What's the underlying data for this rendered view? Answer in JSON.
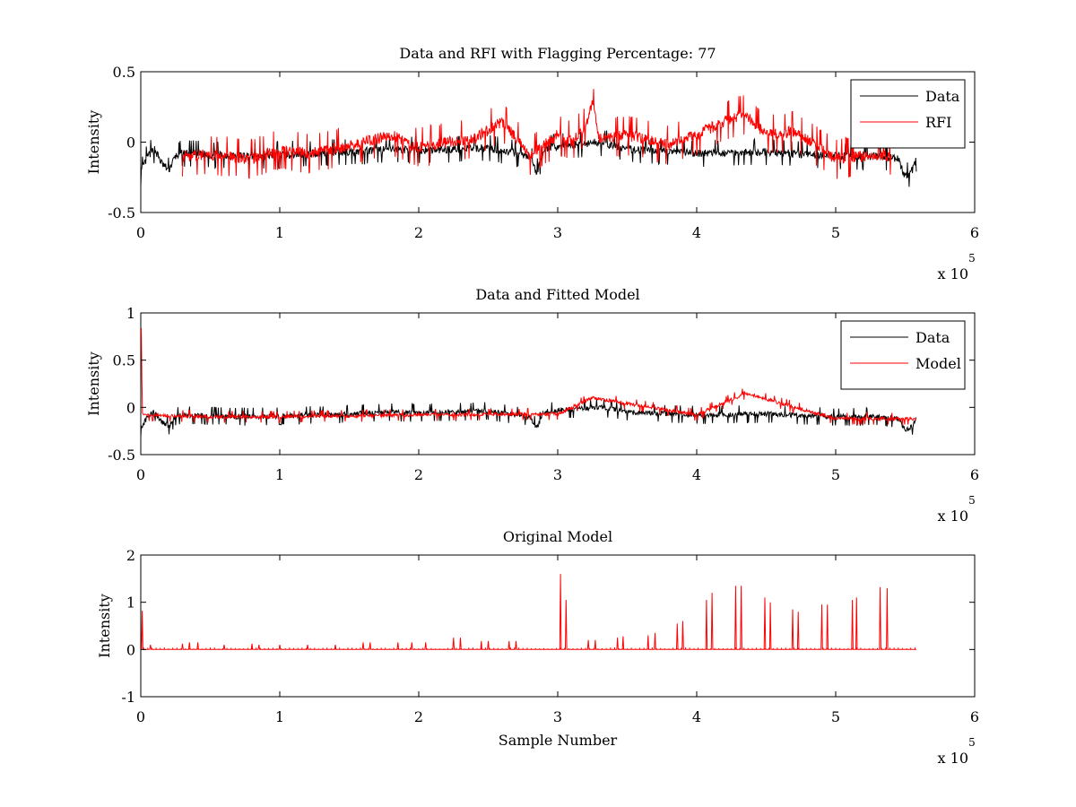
{
  "chart_data": [
    {
      "type": "line",
      "title": "Data and RFI with Flagging Percentage: 77",
      "xlabel": "",
      "ylabel": "Intensity",
      "xlim": [
        0,
        6
      ],
      "ylim": [
        -0.5,
        0.5
      ],
      "xticks": [
        "0",
        "1",
        "2",
        "3",
        "4",
        "5",
        "6"
      ],
      "yticks": [
        "-0.5",
        "0",
        "0.5"
      ],
      "x_exponent": "x 10",
      "x_exponent_power": "5",
      "legend_position": "top-right",
      "grid": false,
      "series": [
        {
          "name": "Data",
          "color": "#000000",
          "x": [
            0,
            0.05,
            0.1,
            0.15,
            0.2,
            0.25,
            0.3,
            0.5,
            0.8,
            1.0,
            1.5,
            1.8,
            2.0,
            2.5,
            2.8,
            2.85,
            2.9,
            3.0,
            3.3,
            3.5,
            4.0,
            4.5,
            5.0,
            5.3,
            5.45,
            5.5,
            5.55,
            5.58
          ],
          "y": [
            -0.22,
            -0.1,
            -0.05,
            -0.15,
            -0.2,
            -0.1,
            -0.08,
            -0.09,
            -0.1,
            -0.09,
            -0.07,
            -0.05,
            -0.06,
            -0.04,
            -0.1,
            -0.22,
            -0.05,
            -0.03,
            0.0,
            -0.05,
            -0.08,
            -0.07,
            -0.1,
            -0.1,
            -0.12,
            -0.25,
            -0.2,
            -0.12
          ]
        },
        {
          "name": "RFI",
          "color": "#ff0000",
          "x": [
            0.3,
            0.5,
            0.8,
            1.0,
            1.2,
            1.5,
            1.8,
            2.0,
            2.2,
            2.4,
            2.6,
            2.8,
            3.0,
            3.1,
            3.2,
            3.25,
            3.3,
            3.5,
            3.8,
            4.0,
            4.2,
            4.35,
            4.5,
            4.7,
            5.0,
            5.2,
            5.4
          ],
          "y": [
            -0.1,
            -0.09,
            -0.12,
            -0.05,
            -0.08,
            -0.03,
            0.05,
            -0.04,
            0.0,
            0.02,
            0.15,
            -0.1,
            0.05,
            0.0,
            0.12,
            0.28,
            0.02,
            0.05,
            -0.02,
            0.05,
            0.15,
            0.2,
            0.05,
            0.08,
            -0.12,
            -0.1,
            -0.1
          ]
        }
      ]
    },
    {
      "type": "line",
      "title": "Data and Fitted Model",
      "xlabel": "",
      "ylabel": "Intensity",
      "xlim": [
        0,
        6
      ],
      "ylim": [
        -0.5,
        1
      ],
      "xticks": [
        "0",
        "1",
        "2",
        "3",
        "4",
        "5",
        "6"
      ],
      "yticks": [
        "-0.5",
        "0",
        "0.5",
        "1"
      ],
      "x_exponent": "x 10",
      "x_exponent_power": "5",
      "legend_position": "top-right",
      "grid": false,
      "series": [
        {
          "name": "Data",
          "color": "#000000",
          "x": [
            0,
            0.05,
            0.1,
            0.15,
            0.2,
            0.25,
            0.3,
            0.5,
            0.8,
            1.0,
            1.5,
            1.8,
            2.0,
            2.5,
            2.8,
            2.85,
            2.9,
            3.0,
            3.3,
            3.5,
            4.0,
            4.5,
            5.0,
            5.3,
            5.45,
            5.5,
            5.55,
            5.58
          ],
          "y": [
            -0.22,
            -0.1,
            -0.05,
            -0.15,
            -0.2,
            -0.1,
            -0.08,
            -0.09,
            -0.1,
            -0.09,
            -0.07,
            -0.05,
            -0.06,
            -0.04,
            -0.1,
            -0.22,
            -0.05,
            -0.03,
            0.0,
            -0.05,
            -0.08,
            -0.07,
            -0.1,
            -0.1,
            -0.12,
            -0.25,
            -0.2,
            -0.12
          ]
        },
        {
          "name": "Model",
          "color": "#ff0000",
          "x": [
            0,
            0.005,
            0.01,
            0.03,
            0.5,
            1.0,
            2.0,
            3.0,
            3.25,
            4.0,
            4.35,
            5.0,
            5.58
          ],
          "y": [
            0.83,
            0.83,
            -0.05,
            -0.08,
            -0.1,
            -0.1,
            -0.08,
            -0.07,
            0.1,
            -0.08,
            0.15,
            -0.12,
            -0.12
          ]
        }
      ]
    },
    {
      "type": "line",
      "title": "Original Model",
      "xlabel": "Sample Number",
      "ylabel": "Intensity",
      "xlim": [
        0,
        6
      ],
      "ylim": [
        -1,
        2
      ],
      "xticks": [
        "0",
        "1",
        "2",
        "3",
        "4",
        "5",
        "6"
      ],
      "yticks": [
        "-1",
        "0",
        "1",
        "2"
      ],
      "x_exponent": "x 10",
      "x_exponent_power": "5",
      "grid": false,
      "series": [
        {
          "color": "#ff0000",
          "baseline": 0,
          "x_end": 5.58,
          "spike_x": [
            0.01,
            0.07,
            0.3,
            0.35,
            0.41,
            0.6,
            0.8,
            0.85,
            1.0,
            1.2,
            1.4,
            1.6,
            1.65,
            1.85,
            1.95,
            2.05,
            2.25,
            2.3,
            2.45,
            2.5,
            2.65,
            2.7,
            3.02,
            3.06,
            3.22,
            3.27,
            3.43,
            3.47,
            3.65,
            3.7,
            3.86,
            3.9,
            4.07,
            4.11,
            4.28,
            4.32,
            4.49,
            4.53,
            4.69,
            4.73,
            4.9,
            4.94,
            5.12,
            5.15,
            5.32,
            5.37
          ],
          "spike_y": [
            0.82,
            0.1,
            0.12,
            0.15,
            0.15,
            0.1,
            0.12,
            0.1,
            0.1,
            0.1,
            0.1,
            0.15,
            0.15,
            0.15,
            0.15,
            0.15,
            0.25,
            0.25,
            0.18,
            0.18,
            0.18,
            0.18,
            1.6,
            1.05,
            0.2,
            0.2,
            0.25,
            0.28,
            0.3,
            0.35,
            0.55,
            0.6,
            1.05,
            1.2,
            1.35,
            1.35,
            1.1,
            1.0,
            0.85,
            0.8,
            0.95,
            0.95,
            1.05,
            1.1,
            1.32,
            1.3
          ]
        }
      ]
    }
  ]
}
